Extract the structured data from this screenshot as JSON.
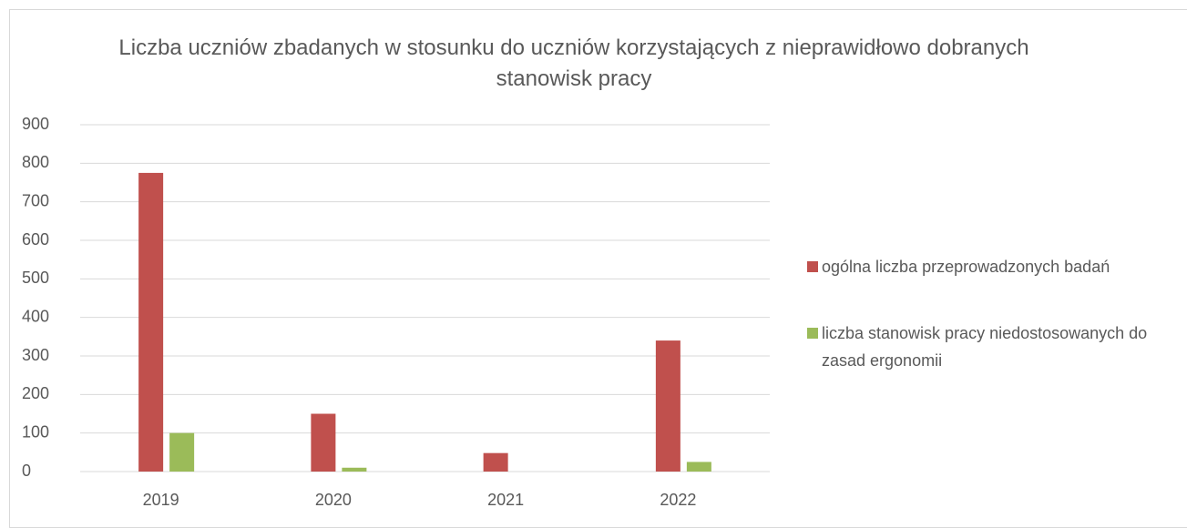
{
  "chart_data": {
    "type": "bar",
    "title": "Liczba uczniów zbadanych w stosunku do uczniów korzystających z nieprawidłowo dobranych stanowisk pracy",
    "categories": [
      "2019",
      "2020",
      "2021",
      "2022"
    ],
    "series": [
      {
        "name": "ogólna liczba przeprowadzonych badań",
        "color": "#c0504d",
        "values": [
          775,
          150,
          48,
          340
        ]
      },
      {
        "name": "liczba stanowisk pracy niedostosowanych do zasad ergonomii",
        "color": "#9bbb59",
        "values": [
          100,
          10,
          0,
          25
        ]
      }
    ],
    "ylim": [
      0,
      900
    ],
    "yticks": [
      0,
      100,
      200,
      300,
      400,
      500,
      600,
      700,
      800,
      900
    ],
    "grid": true,
    "legend": "right"
  }
}
